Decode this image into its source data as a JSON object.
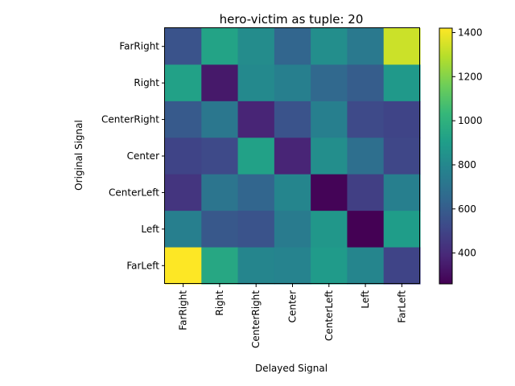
{
  "chart_data": {
    "type": "heatmap",
    "title": "hero-victim as tuple: 20",
    "xlabel": "Delayed Signal",
    "ylabel": "Original Signal",
    "x_categories": [
      "FarRight",
      "Right",
      "CenterRight",
      "Center",
      "CenterLeft",
      "Left",
      "FarLeft"
    ],
    "y_categories": [
      "FarRight",
      "Right",
      "CenterRight",
      "Center",
      "CenterLeft",
      "Left",
      "FarLeft"
    ],
    "values": [
      [
        560,
        930,
        820,
        640,
        830,
        730,
        1330
      ],
      [
        920,
        340,
        810,
        760,
        650,
        600,
        880
      ],
      [
        590,
        720,
        380,
        560,
        760,
        520,
        500
      ],
      [
        500,
        520,
        920,
        380,
        830,
        680,
        510
      ],
      [
        440,
        710,
        640,
        790,
        270,
        480,
        760
      ],
      [
        760,
        580,
        560,
        740,
        870,
        260,
        900
      ],
      [
        1420,
        950,
        790,
        780,
        890,
        790,
        500
      ]
    ],
    "colorbar": {
      "range": [
        260,
        1420
      ],
      "ticks": [
        400,
        600,
        800,
        1000,
        1200,
        1400
      ],
      "colormap": "viridis"
    },
    "grid": false,
    "legend": "colorbar-right"
  }
}
